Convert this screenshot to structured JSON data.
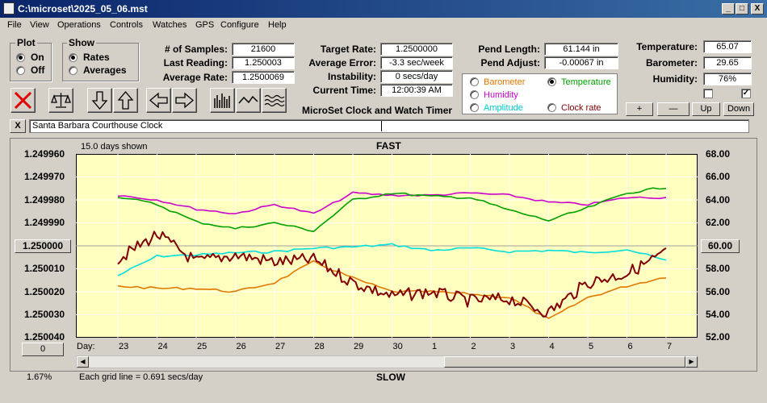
{
  "window": {
    "title": "C:\\microset\\2025_05_06.mst",
    "min": "_",
    "max": "□",
    "close": "X"
  },
  "menu": [
    "File",
    "View",
    "Operations",
    "Controls",
    "Watches",
    "GPS",
    "Configure",
    "Help"
  ],
  "plot_group": {
    "title": "Plot",
    "on": "On",
    "off": "Off",
    "selected": "On"
  },
  "show_group": {
    "title": "Show",
    "rates": "Rates",
    "averages": "Averages",
    "selected": "Rates"
  },
  "stats": {
    "samples_label": "# of Samples:",
    "samples": "21600",
    "last_label": "Last Reading:",
    "last": "1.250003",
    "avgrate_label": "Average Rate:",
    "avgrate": "1.2500069",
    "target_label": "Target Rate:",
    "target": "1.2500000",
    "avgerr_label": "Average Error:",
    "avgerr": "-3.3 sec/week",
    "instab_label": "Instability:",
    "instab": "0 secs/day",
    "curtime_label": "Current Time:",
    "curtime": "12:00:39 AM",
    "pendlen_label": "Pend Length:",
    "pendlen": "61.144 in",
    "pendadj_label": "Pend Adjust:",
    "pendadj": "-0.00067 in",
    "temp_label": "Temperature:",
    "temp": "65.07",
    "baro_label": "Barometer:",
    "baro": "29.65",
    "hum_label": "Humidity:",
    "hum": "76%"
  },
  "app_caption": "MicroSet Clock and Watch Timer",
  "aux_options": {
    "barometer": "Barometer",
    "temperature": "Temperature",
    "humidity": "Humidity",
    "amplitude": "Amplitude",
    "clockrate": "Clock rate",
    "selected": "Temperature",
    "colors": {
      "barometer": "#e07800",
      "temperature": "#00a000",
      "humidity": "#cc00cc",
      "amplitude": "#00cccc",
      "clockrate": "#800000"
    }
  },
  "scale_buttons": {
    "plus": "+",
    "minus": "—",
    "up": "Up",
    "down": "Down"
  },
  "checkboxes": {
    "left": "",
    "right": "✓"
  },
  "clock_name": "Santa Barbara Courthouse Clock",
  "close_x": "X",
  "plot": {
    "days_shown": "15.0 days shown",
    "fast": "FAST",
    "slow": "SLOW",
    "left_ticks": [
      "1.249960",
      "1.249970",
      "1.249980",
      "1.249990",
      "1.250000",
      "1.250010",
      "1.250020",
      "1.250030",
      "1.250040"
    ],
    "right_ticks": [
      "68.00",
      "66.00",
      "64.00",
      "62.00",
      "60.00",
      "58.00",
      "56.00",
      "54.00",
      "52.00"
    ],
    "center_left": "1.250000",
    "center_right": "60.00",
    "day_label": "Day:",
    "days": [
      "23",
      "24",
      "25",
      "26",
      "27",
      "28",
      "29",
      "30",
      "1",
      "2",
      "3",
      "4",
      "5",
      "6",
      "7"
    ],
    "offset_btn": "0",
    "percent": "1.67%",
    "grid_note": "Each grid line = 0.691 secs/day",
    "bg": "#ffffc0"
  },
  "chart_data": {
    "type": "line",
    "xlabel": "Day:",
    "x": [
      "23",
      "24",
      "25",
      "26",
      "27",
      "28",
      "29",
      "30",
      "1",
      "2",
      "3",
      "4",
      "5",
      "6",
      "7"
    ],
    "ylim_left": [
      1.25004,
      1.24996
    ],
    "ylim_right": [
      52,
      68
    ],
    "series": [
      {
        "values": [
          1.250006,
          1.249995,
          1.250007,
          1.250004,
          1.250007,
          1.250006,
          1.250016,
          1.250022,
          1.25002,
          1.250024,
          1.250023,
          1.250029,
          1.250016,
          1.250012,
          1.250003
        ],
        "color": "#800000"
      },
      {
        "values": [
          1.249978,
          1.24998,
          1.249984,
          1.249986,
          1.249982,
          1.249986,
          1.249977,
          1.249978,
          1.249978,
          1.249977,
          1.249978,
          1.249981,
          1.249982,
          1.249979,
          1.249979
        ],
        "color": "#cc00cc"
      },
      {
        "values": [
          64.3,
          63.6,
          62.1,
          61.5,
          62.0,
          61.3,
          64.0,
          64.6,
          64.3,
          64.2,
          63.1,
          62.2,
          63.3,
          64.6,
          65.1
        ],
        "color": "#00a000"
      },
      {
        "values": [
          56.5,
          56.3,
          56.3,
          56.0,
          56.8,
          58.6,
          57.2,
          56.0,
          56.0,
          55.8,
          55.5,
          53.6,
          55.5,
          56.5,
          57.3
        ],
        "color": "#e07800"
      },
      {
        "values": [
          57.4,
          59.1,
          59.2,
          59.4,
          59.5,
          59.8,
          59.9,
          60.1,
          59.6,
          59.8,
          59.5,
          59.6,
          59.4,
          59.7,
          58.7
        ],
        "color": "#00dddd"
      }
    ]
  }
}
